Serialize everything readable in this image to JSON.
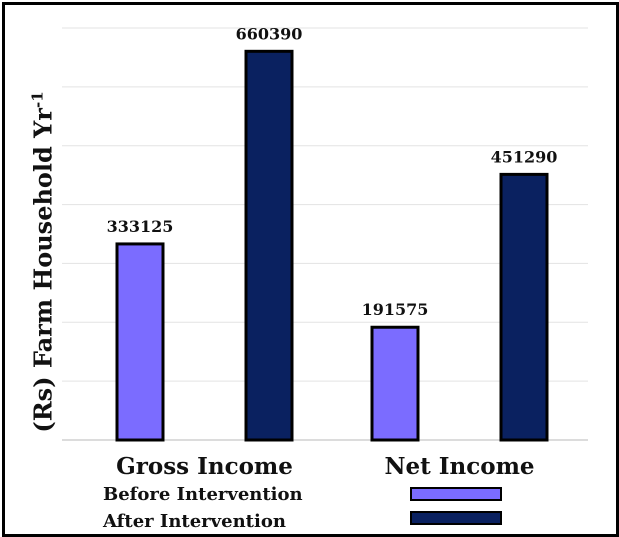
{
  "chart_data": {
    "type": "bar",
    "categories": [
      "Gross Income",
      "Net Income"
    ],
    "series": [
      {
        "name": "Before Intervention",
        "values": [
          333125,
          191575
        ],
        "color": "#7b6cff"
      },
      {
        "name": "After Intervention",
        "values": [
          660390,
          451290
        ],
        "color": "#0a2160"
      }
    ],
    "data_labels": [
      "333125",
      "660390",
      "191575",
      "451290"
    ],
    "ylabel_main": "(Rs) Farm Household Yr",
    "ylabel_sup": "-1",
    "ylim": [
      0,
      700000
    ],
    "grid": true,
    "legend_position": "bottom"
  }
}
